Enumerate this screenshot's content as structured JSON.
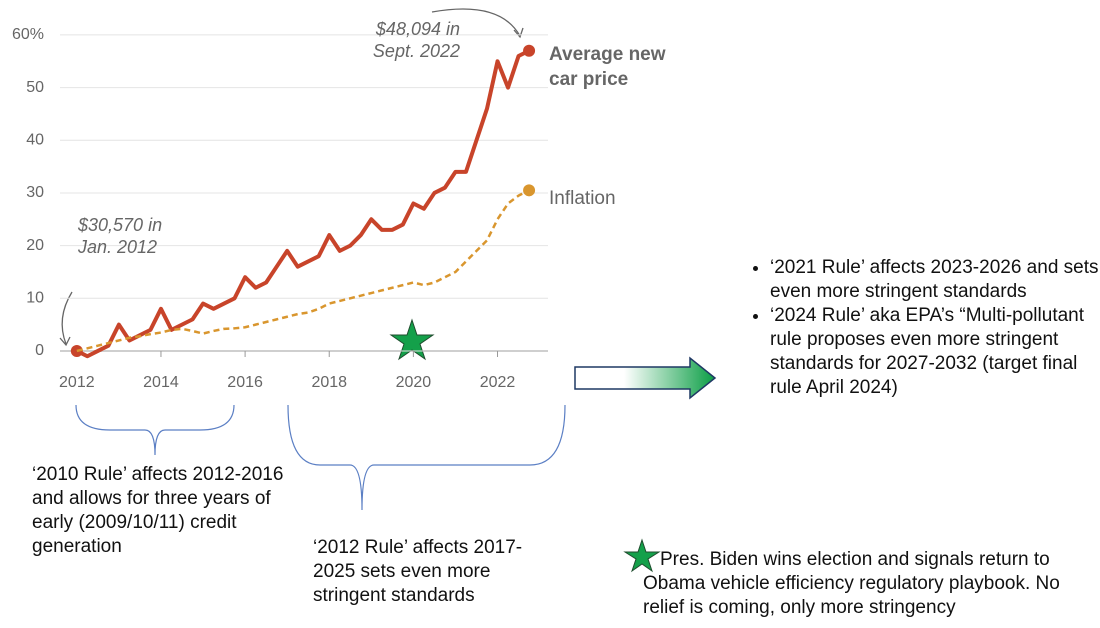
{
  "chart_data": {
    "type": "line",
    "x": [
      2012,
      2012.25,
      2012.5,
      2012.75,
      2013,
      2013.25,
      2013.5,
      2013.75,
      2014,
      2014.25,
      2014.5,
      2014.75,
      2015,
      2015.25,
      2015.5,
      2015.75,
      2016,
      2016.25,
      2016.5,
      2016.75,
      2017,
      2017.25,
      2017.5,
      2017.75,
      2018,
      2018.25,
      2018.5,
      2018.75,
      2019,
      2019.25,
      2019.5,
      2019.75,
      2020,
      2020.25,
      2020.5,
      2020.75,
      2021,
      2021.25,
      2021.5,
      2021.75,
      2022,
      2022.25,
      2022.5,
      2022.75
    ],
    "series": [
      {
        "name": "Average new car price",
        "color": "#c8442a",
        "dash": false,
        "values": [
          0,
          -1,
          0,
          1,
          5,
          2,
          3,
          4,
          8,
          4,
          5,
          6,
          9,
          8,
          9,
          10,
          14,
          12,
          13,
          16,
          19,
          16,
          17,
          18,
          22,
          19,
          20,
          22,
          25,
          23,
          23,
          24,
          28,
          27,
          30,
          31,
          34,
          34,
          40,
          46,
          55,
          50,
          56,
          57
        ]
      },
      {
        "name": "Inflation",
        "color": "#d9962e",
        "dash": true,
        "values": [
          0,
          0.5,
          1,
          1.5,
          2,
          2.5,
          2.8,
          3.2,
          3.5,
          4,
          4.2,
          3.8,
          3.3,
          3.8,
          4.2,
          4.3,
          4.5,
          5,
          5.5,
          6,
          6.5,
          7,
          7.3,
          8,
          9,
          9.5,
          10,
          10.5,
          11,
          11.5,
          12,
          12.5,
          13,
          12.5,
          13,
          14,
          15,
          17,
          19,
          21,
          25,
          28,
          29.5,
          30.5
        ]
      }
    ],
    "xlim": [
      2011.6,
      2023.2
    ],
    "xticks": [
      2012,
      2014,
      2016,
      2018,
      2020,
      2022
    ],
    "ylim": [
      -2,
      62
    ],
    "yticks": [
      0,
      10,
      20,
      30,
      40,
      50,
      {
        "value": 60,
        "label": "60%"
      }
    ],
    "grid": true,
    "annotations": [
      "$48,094 in Sept. 2022",
      "$30,570 in Jan. 2012"
    ]
  },
  "brace_notes": [
    "‘2010 Rule’ affects 2012-2016 and allows for three years of early (2009/10/11) credit generation",
    "‘2012 Rule’ affects 2017-2025 sets even more stringent standards"
  ],
  "bullets": [
    "‘2021 Rule’ affects 2023-2026 and sets even more stringent standards",
    "‘2024 Rule’ aka EPA’s “Multi-pollutant rule proposes even more stringent standards for 2027-2032 (target final rule April 2024)"
  ],
  "star_note": "Pres. Biden wins election and signals return to Obama vehicle efficiency regulatory playbook. No relief is coming, only more stringency"
}
